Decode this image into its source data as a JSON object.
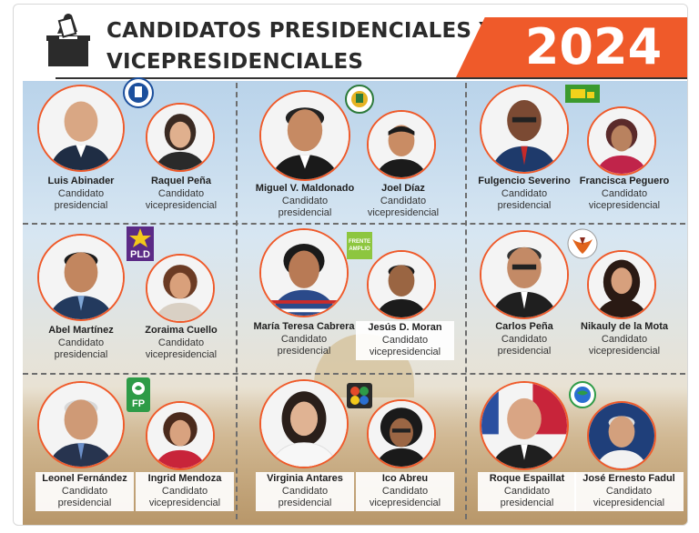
{
  "title": {
    "line1": "CANDIDATOS PRESIDENCIALES Y",
    "line2": "VICEPRESIDENCIALES"
  },
  "year": "2024",
  "roles": {
    "presidential": [
      "Candidato",
      "presidencial"
    ],
    "vice": [
      "Candidato",
      "vicepresidencial"
    ]
  },
  "parties": [
    {
      "logo": "prm-logo",
      "president": {
        "name": "Luis Abinader",
        "role_line1": "Candidato",
        "role_line2": "presidencial"
      },
      "vice": {
        "name": "Raquel Peña",
        "role_line1": "Candidato",
        "role_line2": "vicepresidencial"
      }
    },
    {
      "logo": "party-seal-logo",
      "president": {
        "name": "Miguel V. Maldonado",
        "role_line1": "Candidato",
        "role_line2": "presidencial"
      },
      "vice": {
        "name": "Joel Díaz",
        "role_line1": "Candidato",
        "role_line2": "vicepresidencial"
      }
    },
    {
      "logo": "green-party-logo",
      "president": {
        "name": "Fulgencio Severino",
        "role_line1": "Candidato",
        "role_line2": "presidencial"
      },
      "vice": {
        "name": "Francisca Peguero",
        "role_line1": "Candidato",
        "role_line2": "vicepresidencial"
      }
    },
    {
      "logo": "pld-logo",
      "logo_text": "PLD",
      "president": {
        "name": "Abel Martínez",
        "role_line1": "Candidato",
        "role_line2": "presidencial"
      },
      "vice": {
        "name": "Zoraima Cuello",
        "role_line1": "Candidato",
        "role_line2": "vicepresidencial"
      }
    },
    {
      "logo": "frente-amplio-logo",
      "logo_text_1": "FRENTE",
      "logo_text_2": "AMPLIO",
      "president": {
        "name": "María Teresa Cabrera",
        "role_line1": "Candidato",
        "role_line2": "presidencial"
      },
      "vice": {
        "name": "Jesús D. Moran",
        "role_line1": "Candidato",
        "role_line2": "vicepresidencial"
      }
    },
    {
      "logo": "eagle-party-logo",
      "president": {
        "name": "Carlos Peña",
        "role_line1": "Candidato",
        "role_line2": "presidencial"
      },
      "vice": {
        "name": "Nikauly de la Mota",
        "role_line1": "Candidato",
        "role_line2": "vicepresidencial"
      }
    },
    {
      "logo": "fp-logo",
      "logo_text": "FP",
      "president": {
        "name": "Leonel Fernández",
        "role_line1": "Candidato",
        "role_line2": "presidencial"
      },
      "vice": {
        "name": "Ingrid Mendoza",
        "role_line1": "Candidato",
        "role_line2": "vicepresidencial"
      }
    },
    {
      "logo": "coalition-logo",
      "president": {
        "name": "Virginia Antares",
        "role_line1": "Candidato",
        "role_line2": "presidencial"
      },
      "vice": {
        "name": "Ico Abreu",
        "role_line1": "Candidato",
        "role_line2": "vicepresidencial"
      }
    },
    {
      "logo": "globe-party-logo",
      "president": {
        "name": "Roque Espaillat",
        "role_line1": "Candidato",
        "role_line2": "presidencial"
      },
      "vice": {
        "name": "José Ernesto Fadul",
        "role_line1": "Candidato",
        "role_line2": "vicepresidencial"
      }
    }
  ],
  "colors": {
    "accent": "#ef5a2a",
    "title": "#2b2b2b",
    "pld_purple": "#5b2a86",
    "fp_green": "#2e9b47",
    "frente_green": "#8dc63f"
  }
}
